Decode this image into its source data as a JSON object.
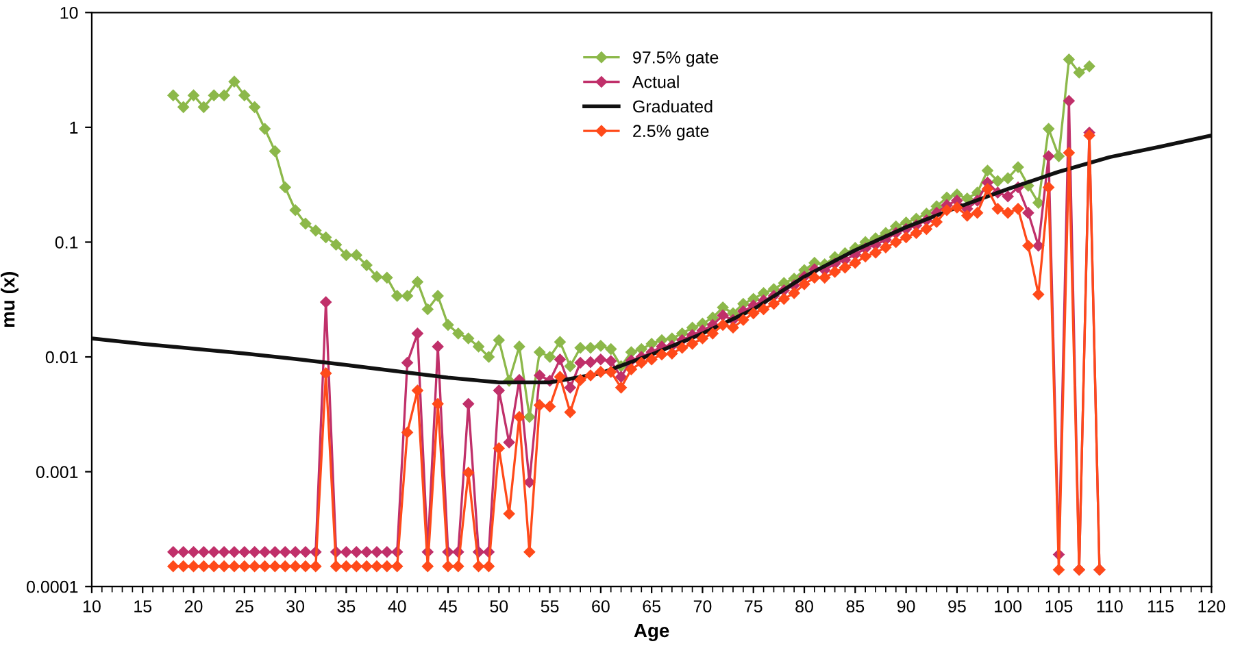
{
  "chart_data": {
    "type": "line",
    "xlabel": "Age",
    "ylabel": "mu (x)",
    "log": "y",
    "xlim": [
      10,
      120
    ],
    "ylim": [
      0.0001,
      10
    ],
    "xticks": [
      10,
      15,
      20,
      25,
      30,
      35,
      40,
      45,
      50,
      55,
      60,
      65,
      70,
      75,
      80,
      85,
      90,
      95,
      100,
      105,
      110,
      115,
      120
    ],
    "yticks": [
      0.0001,
      0.001,
      0.01,
      0.1,
      1,
      10
    ],
    "legend": "top",
    "grid": false,
    "line_style": "solid",
    "series": [
      {
        "name": "97.5% gate",
        "color": "#8cb84a",
        "marker": "diamond",
        "x": [
          18,
          19,
          20,
          21,
          22,
          23,
          24,
          25,
          26,
          27,
          28,
          29,
          30,
          31,
          32,
          33,
          34,
          35,
          36,
          37,
          38,
          39,
          40,
          41,
          42,
          43,
          44,
          45,
          46,
          47,
          48,
          49,
          50,
          51,
          52,
          53,
          54,
          55,
          56,
          57,
          58,
          59,
          60,
          61,
          62,
          63,
          64,
          65,
          66,
          67,
          68,
          69,
          70,
          71,
          72,
          73,
          74,
          75,
          76,
          77,
          78,
          79,
          80,
          81,
          82,
          83,
          84,
          85,
          86,
          87,
          88,
          89,
          90,
          91,
          92,
          93,
          94,
          95,
          96,
          97,
          98,
          99,
          100,
          101,
          102,
          103,
          104,
          105,
          106,
          107,
          108
        ],
        "values": [
          1.9,
          1.5,
          1.9,
          1.5,
          1.9,
          1.9,
          2.5,
          1.9,
          1.5,
          0.97,
          0.62,
          0.3,
          0.19,
          0.145,
          0.126,
          0.11,
          0.095,
          0.077,
          0.077,
          0.063,
          0.05,
          0.049,
          0.034,
          0.034,
          0.045,
          0.026,
          0.034,
          0.019,
          0.016,
          0.0145,
          0.0123,
          0.01,
          0.014,
          0.0062,
          0.0123,
          0.003,
          0.011,
          0.01,
          0.0135,
          0.0083,
          0.012,
          0.012,
          0.0125,
          0.0117,
          0.0083,
          0.011,
          0.0117,
          0.013,
          0.014,
          0.0145,
          0.016,
          0.018,
          0.0195,
          0.022,
          0.027,
          0.024,
          0.029,
          0.032,
          0.036,
          0.039,
          0.044,
          0.048,
          0.057,
          0.066,
          0.064,
          0.074,
          0.08,
          0.089,
          0.1,
          0.108,
          0.12,
          0.137,
          0.148,
          0.16,
          0.177,
          0.205,
          0.245,
          0.26,
          0.24,
          0.27,
          0.42,
          0.34,
          0.36,
          0.45,
          0.31,
          0.22,
          0.97,
          0.56,
          3.9,
          3.0,
          3.4
        ]
      },
      {
        "name": "Actual",
        "color": "#c0306a",
        "marker": "diamond",
        "x": [
          18,
          19,
          20,
          21,
          22,
          23,
          24,
          25,
          26,
          27,
          28,
          29,
          30,
          31,
          32,
          33,
          34,
          35,
          36,
          37,
          38,
          39,
          40,
          41,
          42,
          43,
          44,
          45,
          46,
          47,
          48,
          49,
          50,
          51,
          52,
          53,
          54,
          55,
          56,
          57,
          58,
          59,
          60,
          61,
          62,
          63,
          64,
          65,
          66,
          67,
          68,
          69,
          70,
          71,
          72,
          73,
          74,
          75,
          76,
          77,
          78,
          79,
          80,
          81,
          82,
          83,
          84,
          85,
          86,
          87,
          88,
          89,
          90,
          91,
          92,
          93,
          94,
          95,
          96,
          97,
          98,
          99,
          100,
          101,
          102,
          103,
          104,
          105,
          106,
          107,
          108,
          109
        ],
        "values": [
          0.0002,
          0.0002,
          0.0002,
          0.0002,
          0.0002,
          0.0002,
          0.0002,
          0.0002,
          0.0002,
          0.0002,
          0.0002,
          0.0002,
          0.0002,
          0.0002,
          0.0002,
          0.03,
          0.0002,
          0.0002,
          0.0002,
          0.0002,
          0.0002,
          0.0002,
          0.0002,
          0.0089,
          0.016,
          0.0002,
          0.0123,
          0.0002,
          0.0002,
          0.0039,
          0.0002,
          0.0002,
          0.0051,
          0.0018,
          0.0063,
          0.00081,
          0.0069,
          0.0062,
          0.0095,
          0.0054,
          0.0089,
          0.009,
          0.0095,
          0.0092,
          0.0067,
          0.0093,
          0.01,
          0.011,
          0.0123,
          0.0125,
          0.014,
          0.0155,
          0.017,
          0.019,
          0.023,
          0.021,
          0.025,
          0.028,
          0.031,
          0.034,
          0.038,
          0.042,
          0.05,
          0.058,
          0.057,
          0.065,
          0.07,
          0.078,
          0.088,
          0.095,
          0.105,
          0.12,
          0.13,
          0.14,
          0.155,
          0.18,
          0.21,
          0.23,
          0.195,
          0.23,
          0.33,
          0.27,
          0.25,
          0.3,
          0.18,
          0.093,
          0.56,
          0.00019,
          1.7,
          0.00014,
          0.9,
          0.00014
        ]
      },
      {
        "name": "Graduated",
        "color": "#111111",
        "marker": "none",
        "x": [
          10,
          15,
          20,
          25,
          30,
          35,
          40,
          45,
          50,
          55,
          60,
          65,
          70,
          75,
          80,
          85,
          90,
          95,
          100,
          105,
          110,
          115,
          120
        ],
        "values": [
          0.0145,
          0.013,
          0.0118,
          0.0107,
          0.0096,
          0.0085,
          0.0075,
          0.0066,
          0.006,
          0.006,
          0.0072,
          0.0105,
          0.016,
          0.026,
          0.05,
          0.085,
          0.135,
          0.2,
          0.29,
          0.41,
          0.55,
          0.68,
          0.85
        ]
      },
      {
        "name": "2.5% gate",
        "color": "#ff4a1a",
        "marker": "diamond",
        "x": [
          18,
          19,
          20,
          21,
          22,
          23,
          24,
          25,
          26,
          27,
          28,
          29,
          30,
          31,
          32,
          33,
          34,
          35,
          36,
          37,
          38,
          39,
          40,
          41,
          42,
          43,
          44,
          45,
          46,
          47,
          48,
          49,
          50,
          51,
          52,
          53,
          54,
          55,
          56,
          57,
          58,
          59,
          60,
          61,
          62,
          63,
          64,
          65,
          66,
          67,
          68,
          69,
          70,
          71,
          72,
          73,
          74,
          75,
          76,
          77,
          78,
          79,
          80,
          81,
          82,
          83,
          84,
          85,
          86,
          87,
          88,
          89,
          90,
          91,
          92,
          93,
          94,
          95,
          96,
          97,
          98,
          99,
          100,
          101,
          102,
          103,
          104,
          105,
          106,
          107,
          108,
          109
        ],
        "values": [
          0.00015,
          0.00015,
          0.00015,
          0.00015,
          0.00015,
          0.00015,
          0.00015,
          0.00015,
          0.00015,
          0.00015,
          0.00015,
          0.00015,
          0.00015,
          0.00015,
          0.00015,
          0.0072,
          0.00015,
          0.00015,
          0.00015,
          0.00015,
          0.00015,
          0.00015,
          0.00015,
          0.0022,
          0.0051,
          0.00015,
          0.0039,
          0.00015,
          0.00015,
          0.00098,
          0.00015,
          0.00015,
          0.0016,
          0.00043,
          0.003,
          0.0002,
          0.0038,
          0.0037,
          0.0067,
          0.0033,
          0.0063,
          0.0069,
          0.0074,
          0.0074,
          0.0054,
          0.0078,
          0.0089,
          0.0095,
          0.0105,
          0.0107,
          0.012,
          0.013,
          0.0145,
          0.016,
          0.019,
          0.018,
          0.021,
          0.024,
          0.026,
          0.029,
          0.032,
          0.036,
          0.043,
          0.049,
          0.049,
          0.055,
          0.06,
          0.066,
          0.075,
          0.081,
          0.09,
          0.1,
          0.11,
          0.12,
          0.13,
          0.15,
          0.19,
          0.2,
          0.17,
          0.18,
          0.29,
          0.195,
          0.18,
          0.195,
          0.093,
          0.035,
          0.3,
          0.00014,
          0.6,
          0.00014,
          0.85,
          0.00014
        ]
      }
    ]
  }
}
